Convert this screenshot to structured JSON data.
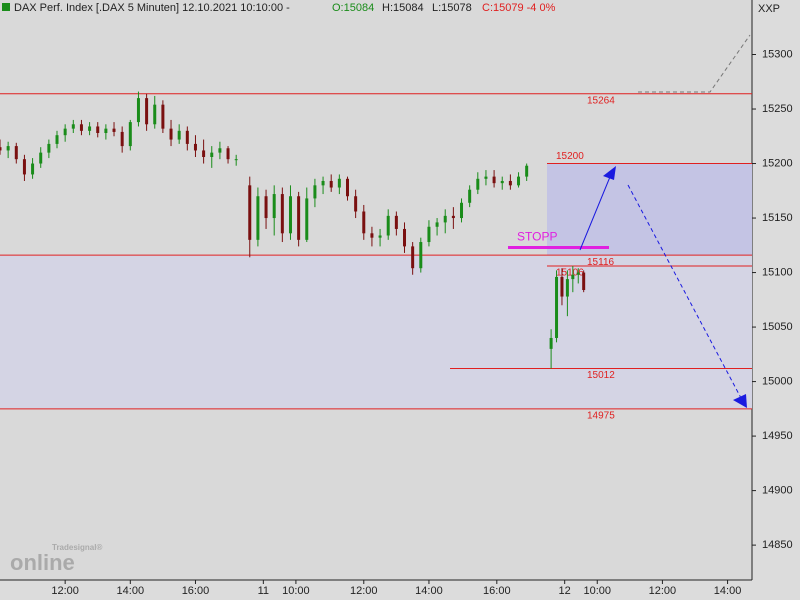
{
  "header": {
    "symbol": "DAX Perf. Index [.DAX  5 Minuten]  12.10.2021 10:10:00 -",
    "open": "O:15084",
    "high": "H:15084",
    "low": "L:15078",
    "close": "C:15079 -4 0%",
    "corner": "XXP",
    "logo_small": "Tradesignal®",
    "logo_big": "online"
  },
  "chart_data": {
    "type": "candlestick",
    "up_color": "#1a8c1a",
    "down_color": "#7a1010",
    "x": [
      0,
      3,
      6,
      9,
      12,
      15,
      18,
      21,
      24,
      27,
      30,
      33,
      36,
      39,
      42,
      45,
      48,
      51,
      54,
      57,
      60,
      63,
      66,
      69,
      72,
      75,
      78,
      81,
      84,
      87,
      92,
      95,
      98,
      101,
      104,
      107,
      110,
      113,
      116,
      119,
      122,
      125,
      128,
      131,
      134,
      137,
      140,
      143,
      146,
      149,
      152,
      155,
      158,
      161,
      164,
      167,
      170,
      173,
      176,
      179,
      182,
      185,
      188,
      191,
      194,
      203,
      205,
      207,
      209,
      211,
      213,
      215
    ],
    "open": [
      15215,
      15212,
      15216,
      15204,
      15190,
      15200,
      15210,
      15218,
      15226,
      15232,
      15236,
      15230,
      15234,
      15228,
      15232,
      15229,
      15216,
      15238,
      15260,
      15236,
      15254,
      15232,
      15222,
      15230,
      15218,
      15212,
      15206,
      15210,
      15214,
      15204,
      15180,
      15130,
      15170,
      15150,
      15172,
      15136,
      15170,
      15130,
      15168,
      15180,
      15184,
      15178,
      15186,
      15170,
      15156,
      15136,
      15132,
      15134,
      15152,
      15140,
      15124,
      15104,
      15128,
      15142,
      15146,
      15152,
      15150,
      15164,
      15176,
      15186,
      15188,
      15182,
      15184,
      15180,
      15188,
      15030,
      15040,
      15096,
      15078,
      15094,
      15098,
      15100
    ],
    "high": [
      15222,
      15220,
      15219,
      15208,
      15205,
      15215,
      15222,
      15230,
      15236,
      15240,
      15240,
      15238,
      15238,
      15236,
      15238,
      15234,
      15240,
      15266,
      15264,
      15262,
      15258,
      15240,
      15236,
      15234,
      15226,
      15222,
      15216,
      15220,
      15216,
      15208,
      15188,
      15178,
      15176,
      15180,
      15178,
      15180,
      15174,
      15178,
      15186,
      15188,
      15190,
      15190,
      15188,
      15176,
      15162,
      15142,
      15140,
      15158,
      15156,
      15146,
      15128,
      15132,
      15148,
      15150,
      15158,
      15160,
      15168,
      15180,
      15192,
      15194,
      15194,
      15188,
      15190,
      15192,
      15200,
      15048,
      15102,
      15104,
      15102,
      15106,
      15104,
      15102
    ],
    "low": [
      15208,
      15205,
      15200,
      15184,
      15186,
      15196,
      15205,
      15214,
      15220,
      15228,
      15226,
      15226,
      15224,
      15222,
      15225,
      15210,
      15212,
      15234,
      15230,
      15232,
      15228,
      15216,
      15218,
      15212,
      15206,
      15200,
      15196,
      15204,
      15200,
      15198,
      15114,
      15124,
      15140,
      15134,
      15128,
      15130,
      15124,
      15128,
      15160,
      15172,
      15174,
      15172,
      15166,
      15150,
      15130,
      15124,
      15124,
      15130,
      15134,
      15118,
      15098,
      15100,
      15124,
      15134,
      15136,
      15140,
      15146,
      15160,
      15172,
      15180,
      15178,
      15176,
      15176,
      15178,
      15184,
      15012,
      15036,
      15070,
      15060,
      15082,
      15090,
      15082
    ],
    "close": [
      15212,
      15216,
      15204,
      15190,
      15200,
      15210,
      15218,
      15226,
      15232,
      15236,
      15230,
      15234,
      15228,
      15232,
      15229,
      15216,
      15238,
      15260,
      15236,
      15254,
      15232,
      15222,
      15230,
      15218,
      15212,
      15206,
      15210,
      15214,
      15204,
      15204,
      15130,
      15170,
      15150,
      15172,
      15136,
      15170,
      15130,
      15168,
      15180,
      15184,
      15178,
      15186,
      15170,
      15156,
      15136,
      15132,
      15134,
      15152,
      15140,
      15124,
      15104,
      15128,
      15142,
      15146,
      15152,
      15150,
      15164,
      15176,
      15186,
      15188,
      15182,
      15184,
      15180,
      15188,
      15198,
      15040,
      15096,
      15078,
      15094,
      15098,
      15100,
      15084
    ],
    "xlim": [
      0,
      277
    ],
    "xticks": [
      {
        "value": 24,
        "label": "12:00"
      },
      {
        "value": 48,
        "label": "14:00"
      },
      {
        "value": 72,
        "label": "16:00"
      },
      {
        "value": 97,
        "label": "11"
      },
      {
        "value": 109,
        "label": "10:00"
      },
      {
        "value": 134,
        "label": "12:00"
      },
      {
        "value": 158,
        "label": "14:00"
      },
      {
        "value": 183,
        "label": "16:00"
      },
      {
        "value": 208,
        "label": "12"
      },
      {
        "value": 220,
        "label": "10:00"
      },
      {
        "value": 244,
        "label": "12:00"
      },
      {
        "value": 268,
        "label": "14:00"
      }
    ],
    "ylim": [
      14818,
      15350
    ],
    "yticks": [
      14850,
      14900,
      14950,
      15000,
      15050,
      15100,
      15150,
      15200,
      15250,
      15300
    ],
    "levels": [
      15264,
      15200,
      15116,
      15106,
      15012,
      14975
    ],
    "level_color": "#e02020",
    "stop": {
      "label": "STOPP",
      "value": 15123,
      "color": "#e020e0"
    }
  }
}
